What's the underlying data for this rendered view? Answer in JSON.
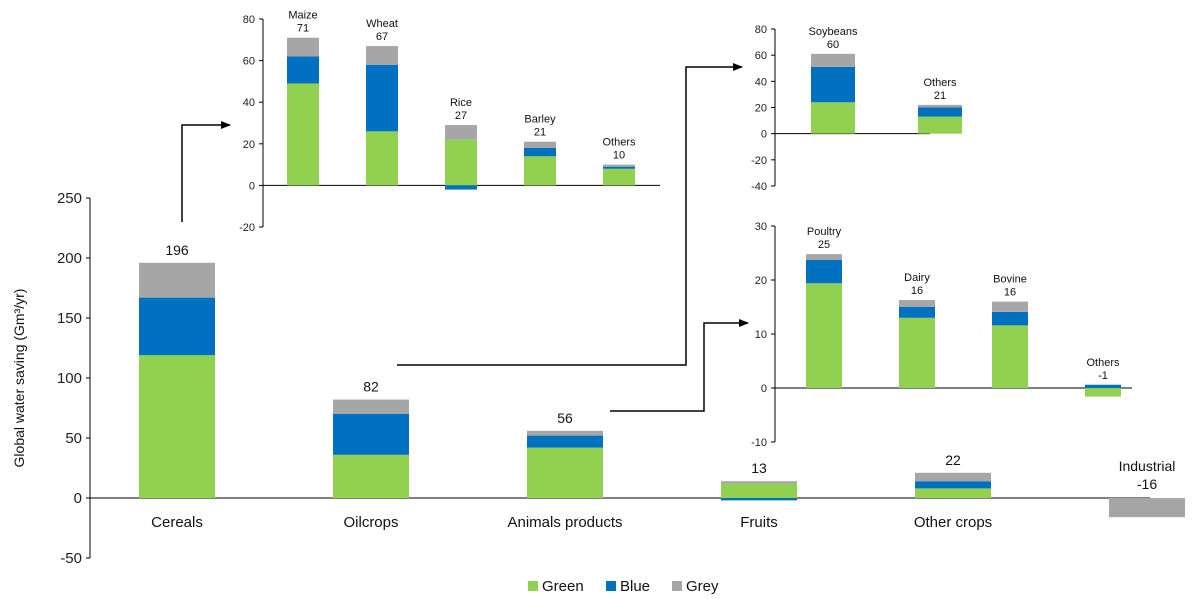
{
  "colors": {
    "green": "#92d050",
    "blue": "#0070c0",
    "grey": "#a6a6a6",
    "axis": "#000000"
  },
  "legend": [
    {
      "name": "Green",
      "color": "#92d050"
    },
    {
      "name": "Blue",
      "color": "#0070c0"
    },
    {
      "name": "Grey",
      "color": "#a6a6a6"
    }
  ],
  "chart_data": [
    {
      "id": "main",
      "type": "bar",
      "stacked": true,
      "ylabel": "Global water saving (Gm³/yr)",
      "ylim": [
        -50,
        250
      ],
      "yticks": [
        -50,
        0,
        50,
        100,
        150,
        200,
        250
      ],
      "categories": [
        "Cereals",
        "Oilcrops",
        "Animals products",
        "Fruits",
        "Other crops",
        ""
      ],
      "series": [
        {
          "name": "Green",
          "values": [
            119,
            36,
            42,
            12,
            8,
            0
          ]
        },
        {
          "name": "Blue",
          "values": [
            48,
            34,
            10,
            -2,
            6,
            0
          ]
        },
        {
          "name": "Grey",
          "values": [
            29,
            12,
            4,
            2,
            7,
            -16
          ]
        }
      ],
      "bar_labels": [
        "196",
        "82",
        "56",
        "13",
        "22",
        "-16"
      ],
      "special_label": {
        "name": "Industrial",
        "value": "-16"
      }
    },
    {
      "id": "cereals",
      "type": "bar",
      "stacked": true,
      "ylim": [
        -20,
        80
      ],
      "yticks": [
        -20,
        0,
        20,
        40,
        60,
        80
      ],
      "categories": [
        "Maize",
        "Wheat",
        "Rice",
        "Barley",
        "Others"
      ],
      "series": [
        {
          "name": "Green",
          "values": [
            49,
            26,
            22,
            14,
            8
          ]
        },
        {
          "name": "Blue",
          "values": [
            13,
            32,
            -2,
            4,
            1
          ]
        },
        {
          "name": "Grey",
          "values": [
            9,
            9,
            7,
            3,
            1
          ]
        }
      ],
      "bar_labels": [
        "71",
        "67",
        "27",
        "21",
        "10"
      ]
    },
    {
      "id": "oilcrops",
      "type": "bar",
      "stacked": true,
      "ylim": [
        -40,
        80
      ],
      "yticks": [
        -40,
        -20,
        0,
        20,
        40,
        60,
        80
      ],
      "categories": [
        "Soybeans",
        "Others"
      ],
      "series": [
        {
          "name": "Green",
          "values": [
            24,
            13
          ]
        },
        {
          "name": "Blue",
          "values": [
            27,
            7
          ]
        },
        {
          "name": "Grey",
          "values": [
            10,
            2
          ]
        }
      ],
      "bar_labels": [
        "60",
        "21"
      ]
    },
    {
      "id": "animals",
      "type": "bar",
      "stacked": true,
      "ylim": [
        -10,
        30
      ],
      "yticks": [
        -10,
        0,
        10,
        20,
        30
      ],
      "categories": [
        "Poultry",
        "Dairy",
        "Bovine",
        "Others"
      ],
      "series": [
        {
          "name": "Green",
          "values": [
            19.4,
            13,
            11.6,
            -1.6
          ]
        },
        {
          "name": "Blue",
          "values": [
            4.3,
            2,
            2.5,
            0.6
          ]
        },
        {
          "name": "Grey",
          "values": [
            1.1,
            1.3,
            1.9,
            0
          ]
        }
      ],
      "bar_labels": [
        "25",
        "16",
        "16",
        "-1"
      ]
    }
  ]
}
